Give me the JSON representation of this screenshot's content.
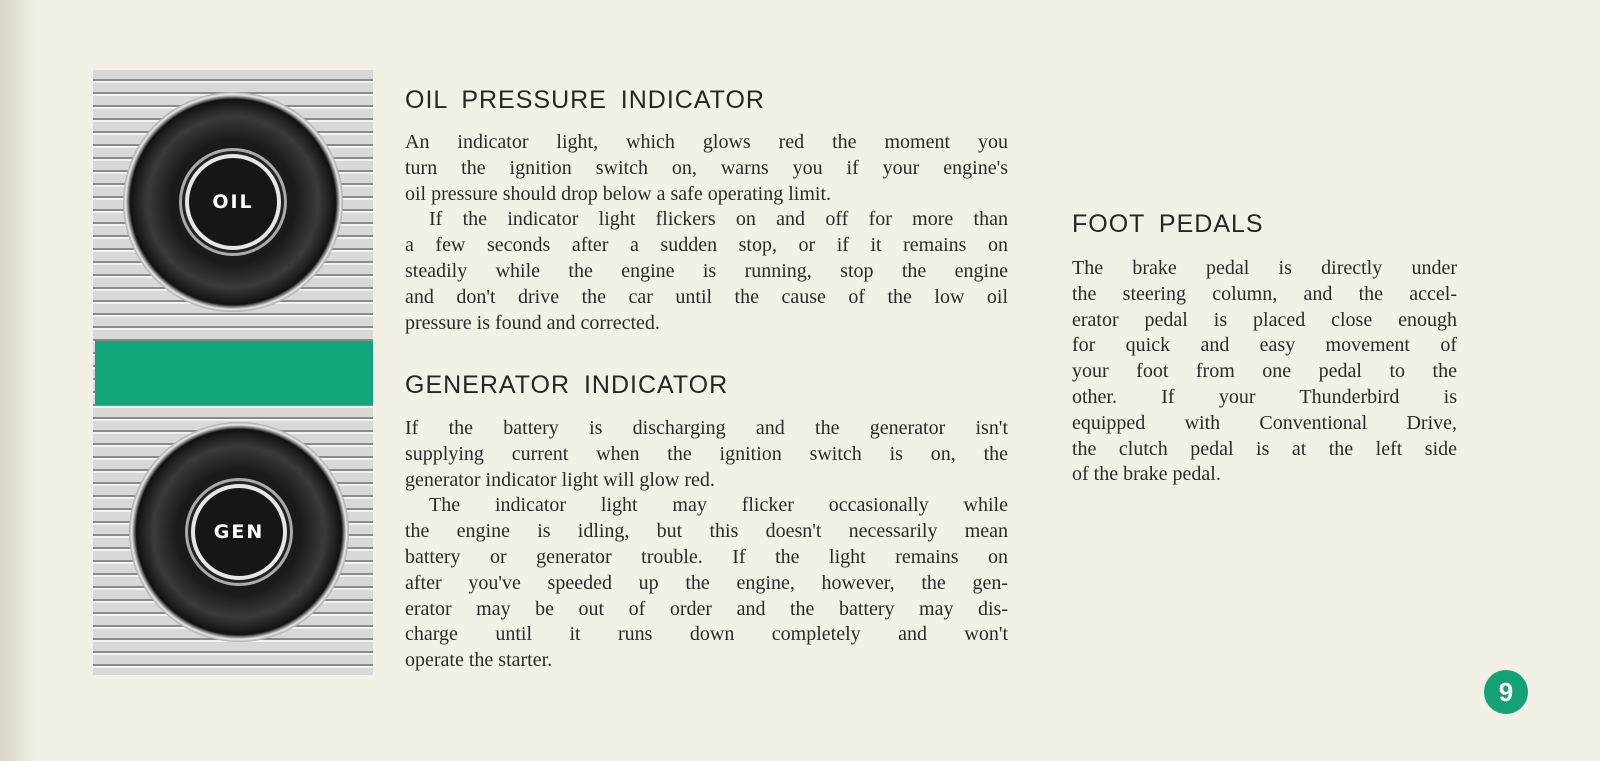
{
  "colors": {
    "accent": "#14a274",
    "paper": "#f3f1e6"
  },
  "illustration": {
    "top_label": "OIL",
    "bottom_label": "GEN"
  },
  "sections": {
    "oil": {
      "heading": "OIL PRESSURE INDICATOR",
      "lines": [
        "An indicator light, which glows red the moment you",
        "turn the ignition switch on, warns you if your engine's",
        "oil pressure should drop below a safe operating limit.",
        "If the indicator light flickers on and off for more than",
        "a few seconds after a sudden stop, or if it remains on",
        "steadily while the engine is running, stop the engine",
        "and don't drive the car until the cause of the low oil",
        "pressure is found and corrected."
      ]
    },
    "generator": {
      "heading": "GENERATOR INDICATOR",
      "lines": [
        "If the battery is discharging and the generator isn't",
        "supplying current when the ignition switch is on, the",
        "generator indicator light will glow red.",
        "The indicator light may flicker occasionally while",
        "the engine is idling, but this doesn't necessarily mean",
        "battery or generator trouble. If the light remains on",
        "after you've speeded up the engine, however, the gen-",
        "erator may be out of order and the battery may dis-",
        "charge until it runs down completely and won't",
        "operate the starter."
      ]
    },
    "pedals": {
      "heading": "FOOT PEDALS",
      "lines": [
        "The brake pedal is directly under",
        "the steering column, and the accel-",
        "erator pedal is placed close enough",
        "for quick and easy movement of",
        "your foot from one pedal to the",
        "other. If your Thunderbird is",
        "equipped with Conventional Drive,",
        "the clutch pedal is at the left side",
        "of the brake pedal."
      ]
    }
  },
  "page_number": "9"
}
